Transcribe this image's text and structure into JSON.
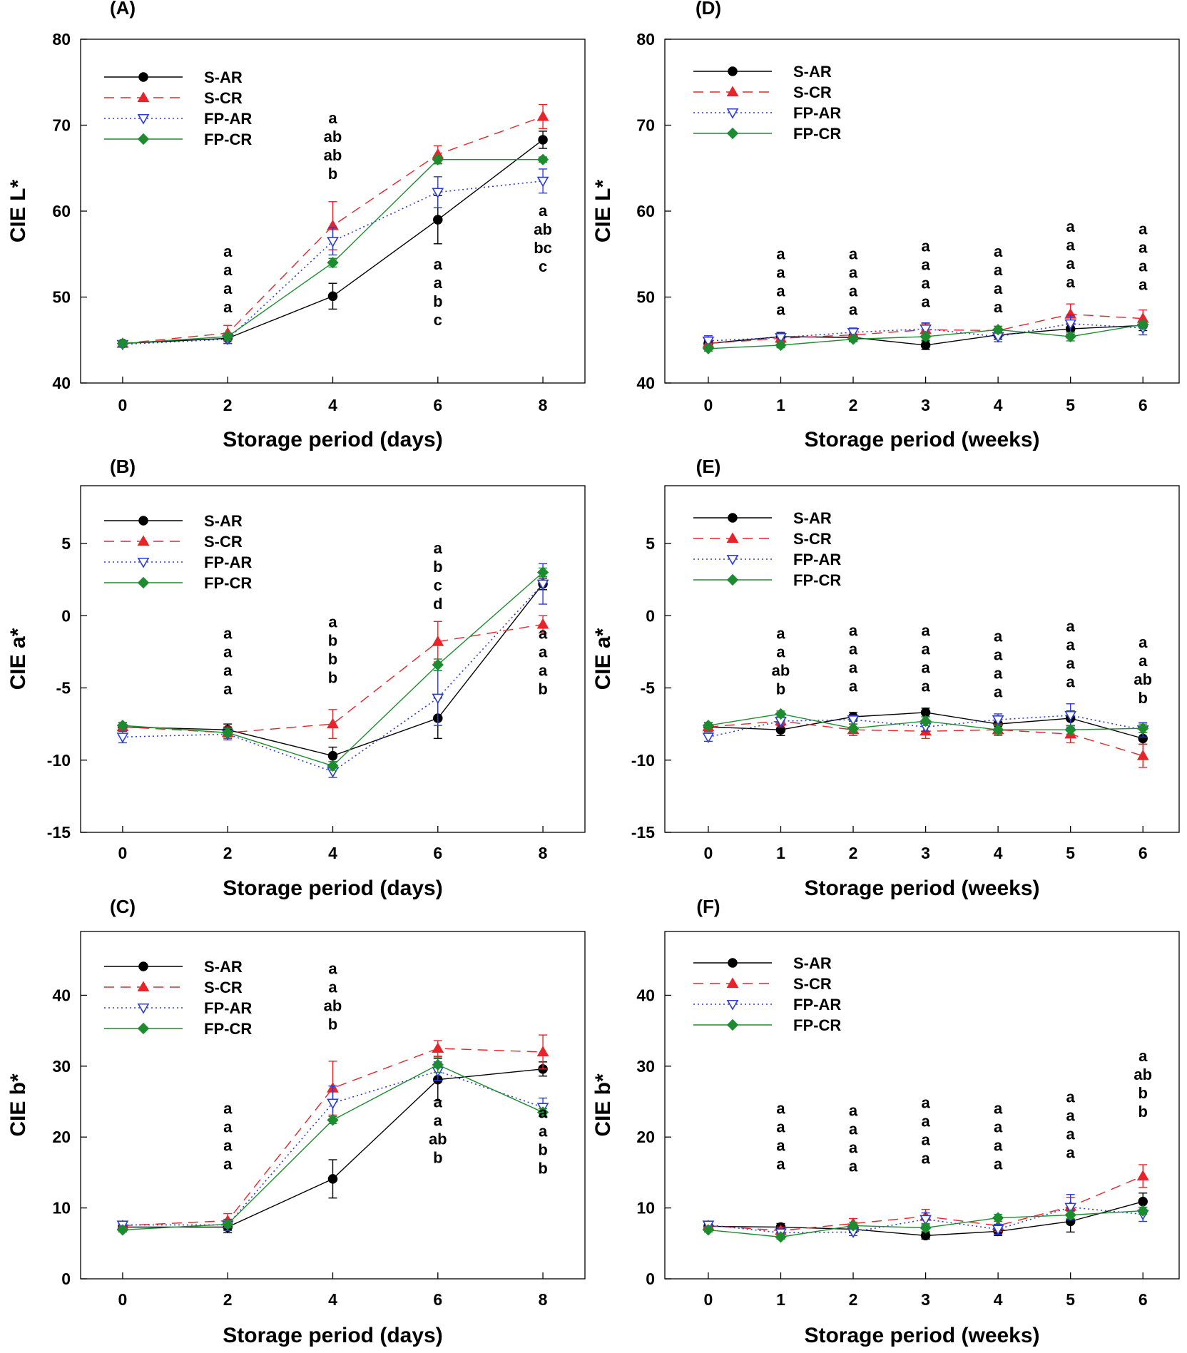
{
  "series_styles": [
    {
      "key": "S-AR",
      "color": "#000000",
      "dash": "",
      "marker": "circle",
      "fill": "#000000"
    },
    {
      "key": "S-CR",
      "color": "#e8242a",
      "dash": "14,9",
      "marker": "triangle",
      "fill": "#e8242a"
    },
    {
      "key": "FP-AR",
      "color": "#2b3cd6",
      "dash": "2,4",
      "marker": "triangle-down",
      "fill": "#ffffff"
    },
    {
      "key": "FP-CR",
      "color": "#1c8c2e",
      "dash": "",
      "marker": "diamond",
      "fill": "#1c8c2e"
    }
  ],
  "chart_data": [
    {
      "panel": "(A)",
      "type": "line",
      "xlabel": "Storage period (days)",
      "ylabel": "CIE L*",
      "x": [
        0,
        2,
        4,
        6,
        8
      ],
      "xticks": [
        "0",
        "2",
        "4",
        "6",
        "8"
      ],
      "xlim": [
        -0.8,
        8.8
      ],
      "ylim": [
        40,
        80
      ],
      "yticks": [
        "40",
        "50",
        "60",
        "70",
        "80"
      ],
      "series": [
        {
          "name": "S-AR",
          "values": [
            44.6,
            45.2,
            50.1,
            59.0,
            68.3
          ],
          "err": [
            0.3,
            0.6,
            1.5,
            2.8,
            1.0
          ]
        },
        {
          "name": "S-CR",
          "values": [
            44.6,
            45.8,
            58.3,
            66.6,
            71.0
          ],
          "err": [
            0.3,
            0.9,
            2.8,
            1.0,
            1.4
          ]
        },
        {
          "name": "FP-AR",
          "values": [
            44.5,
            45.1,
            56.5,
            62.2,
            63.5
          ],
          "err": [
            0.3,
            0.5,
            1.6,
            1.8,
            1.4
          ]
        },
        {
          "name": "FP-CR",
          "values": [
            44.6,
            45.4,
            54.0,
            66.0,
            66.0
          ],
          "err": [
            0.3,
            0.4,
            0.5,
            0.5,
            0.3
          ]
        }
      ],
      "annotations": [
        {
          "x": 2,
          "y": 54.7,
          "lines": [
            "a",
            "a",
            "a",
            "a"
          ]
        },
        {
          "x": 4,
          "y": 70.2,
          "lines": [
            "a",
            "ab",
            "ab",
            "b"
          ]
        },
        {
          "x": 6,
          "y": 53.2,
          "lines": [
            "a",
            "a",
            "b",
            "c"
          ]
        },
        {
          "x": 8,
          "y": 59.4,
          "lines": [
            "a",
            "ab",
            "bc",
            "c"
          ]
        }
      ]
    },
    {
      "panel": "(B)",
      "type": "line",
      "xlabel": "Storage period (days)",
      "ylabel": "CIE a*",
      "x": [
        0,
        2,
        4,
        6,
        8
      ],
      "xticks": [
        "0",
        "2",
        "4",
        "6",
        "8"
      ],
      "xlim": [
        -0.8,
        8.8
      ],
      "ylim": [
        -15,
        9
      ],
      "yticks": [
        "-15",
        "-10",
        "-5",
        "0",
        "5"
      ],
      "series": [
        {
          "name": "S-AR",
          "values": [
            -7.7,
            -7.9,
            -9.7,
            -7.1,
            2.2
          ],
          "err": [
            0.3,
            0.4,
            0.6,
            1.4,
            0.4
          ]
        },
        {
          "name": "S-CR",
          "values": [
            -7.7,
            -8.1,
            -7.5,
            -1.8,
            -0.6
          ],
          "err": [
            0.3,
            0.4,
            1.0,
            1.4,
            0.6
          ]
        },
        {
          "name": "FP-AR",
          "values": [
            -8.4,
            -8.2,
            -10.8,
            -5.7,
            2.2
          ],
          "err": [
            0.4,
            0.4,
            0.4,
            1.9,
            1.4
          ]
        },
        {
          "name": "FP-CR",
          "values": [
            -7.6,
            -8.1,
            -10.4,
            -3.4,
            3.0
          ],
          "err": [
            0.2,
            0.3,
            0.3,
            0.4,
            0.3
          ]
        }
      ],
      "annotations": [
        {
          "x": 2,
          "y": -1.6,
          "lines": [
            "a",
            "a",
            "a",
            "a"
          ]
        },
        {
          "x": 4,
          "y": -0.8,
          "lines": [
            "a",
            "b",
            "b",
            "b"
          ]
        },
        {
          "x": 6,
          "y": 4.3,
          "lines": [
            "a",
            "b",
            "c",
            "d"
          ]
        },
        {
          "x": 8,
          "y": -1.6,
          "lines": [
            "a",
            "a",
            "a",
            "b"
          ]
        }
      ]
    },
    {
      "panel": "(C)",
      "type": "line",
      "xlabel": "Storage period (days)",
      "ylabel": "CIE b*",
      "x": [
        0,
        2,
        4,
        6,
        8
      ],
      "xticks": [
        "0",
        "2",
        "4",
        "6",
        "8"
      ],
      "xlim": [
        -0.8,
        8.8
      ],
      "ylim": [
        0,
        49
      ],
      "yticks": [
        "0",
        "10",
        "20",
        "30",
        "40"
      ],
      "series": [
        {
          "name": "S-AR",
          "values": [
            7.3,
            7.3,
            14.1,
            28.1,
            29.6
          ],
          "err": [
            0.5,
            0.8,
            2.7,
            3.0,
            1.0
          ]
        },
        {
          "name": "S-CR",
          "values": [
            7.5,
            8.2,
            26.9,
            32.5,
            32.0
          ],
          "err": [
            0.4,
            1.0,
            3.8,
            1.1,
            2.4
          ]
        },
        {
          "name": "FP-AR",
          "values": [
            7.6,
            7.6,
            24.8,
            29.3,
            24.2
          ],
          "err": [
            0.4,
            0.8,
            2.4,
            1.3,
            1.3
          ]
        },
        {
          "name": "FP-CR",
          "values": [
            6.9,
            7.7,
            22.4,
            30.2,
            23.5
          ],
          "err": [
            0.3,
            0.5,
            0.5,
            1.1,
            0.5
          ]
        }
      ],
      "annotations": [
        {
          "x": 2,
          "y": 23.3,
          "lines": [
            "a",
            "a",
            "a",
            "a"
          ]
        },
        {
          "x": 4,
          "y": 43.0,
          "lines": [
            "a",
            "a",
            "ab",
            "b"
          ]
        },
        {
          "x": 6,
          "y": 24.2,
          "lines": [
            "a",
            "a",
            "ab",
            "b"
          ]
        },
        {
          "x": 8,
          "y": 22.7,
          "lines": [
            "a",
            "a",
            "b",
            "b"
          ]
        }
      ]
    },
    {
      "panel": "(D)",
      "type": "line",
      "xlabel": "Storage period (weeks)",
      "ylabel": "CIE L*",
      "x": [
        0,
        1,
        2,
        3,
        4,
        5,
        6
      ],
      "xticks": [
        "0",
        "1",
        "2",
        "3",
        "4",
        "5",
        "6"
      ],
      "xlim": [
        -0.6,
        6.5
      ],
      "ylim": [
        40,
        80
      ],
      "yticks": [
        "40",
        "50",
        "60",
        "70",
        "80"
      ],
      "series": [
        {
          "name": "S-AR",
          "values": [
            44.6,
            45.4,
            45.3,
            44.4,
            45.6,
            46.3,
            46.7
          ],
          "err": [
            0.3,
            0.4,
            0.4,
            0.5,
            0.5,
            0.6,
            0.6
          ]
        },
        {
          "name": "S-CR",
          "values": [
            44.6,
            45.2,
            45.6,
            46.2,
            46.1,
            48.0,
            47.5
          ],
          "err": [
            0.4,
            0.5,
            0.5,
            0.7,
            0.5,
            1.2,
            1.0
          ]
        },
        {
          "name": "FP-AR",
          "values": [
            44.9,
            45.3,
            45.9,
            46.3,
            45.4,
            46.9,
            46.4
          ],
          "err": [
            0.6,
            0.6,
            0.5,
            0.7,
            0.6,
            1.0,
            0.8
          ]
        },
        {
          "name": "FP-CR",
          "values": [
            44.0,
            44.4,
            45.1,
            45.4,
            46.2,
            45.4,
            46.8
          ],
          "err": [
            0.3,
            0.3,
            0.3,
            0.4,
            0.4,
            0.5,
            0.4
          ]
        }
      ],
      "annotations": [
        {
          "x": 1,
          "y": 54.4,
          "lines": [
            "a",
            "a",
            "a",
            "a"
          ]
        },
        {
          "x": 2,
          "y": 54.4,
          "lines": [
            "a",
            "a",
            "a",
            "a"
          ]
        },
        {
          "x": 3,
          "y": 55.3,
          "lines": [
            "a",
            "a",
            "a",
            "a"
          ]
        },
        {
          "x": 4,
          "y": 54.7,
          "lines": [
            "a",
            "a",
            "a",
            "a"
          ]
        },
        {
          "x": 5,
          "y": 57.6,
          "lines": [
            "a",
            "a",
            "a",
            "a"
          ]
        },
        {
          "x": 6,
          "y": 57.3,
          "lines": [
            "a",
            "a",
            "a",
            "a"
          ]
        }
      ]
    },
    {
      "panel": "(E)",
      "type": "line",
      "xlabel": "Storage period (weeks)",
      "ylabel": "CIE a*",
      "x": [
        0,
        1,
        2,
        3,
        4,
        5,
        6
      ],
      "xticks": [
        "0",
        "1",
        "2",
        "3",
        "4",
        "5",
        "6"
      ],
      "xlim": [
        -0.6,
        6.5
      ],
      "ylim": [
        -15,
        9
      ],
      "yticks": [
        "-15",
        "-10",
        "-5",
        "0",
        "5"
      ],
      "series": [
        {
          "name": "S-AR",
          "values": [
            -7.7,
            -7.9,
            -7.0,
            -6.7,
            -7.5,
            -7.1,
            -8.5
          ],
          "err": [
            0.3,
            0.4,
            0.3,
            0.3,
            0.4,
            0.5,
            0.4
          ]
        },
        {
          "name": "S-CR",
          "values": [
            -7.7,
            -7.3,
            -7.9,
            -8.0,
            -7.9,
            -8.2,
            -9.7
          ],
          "err": [
            0.3,
            0.4,
            0.4,
            0.5,
            0.4,
            0.6,
            0.8
          ]
        },
        {
          "name": "FP-AR",
          "values": [
            -8.4,
            -7.3,
            -7.2,
            -7.7,
            -7.2,
            -6.9,
            -7.9
          ],
          "err": [
            0.3,
            0.3,
            0.3,
            0.3,
            0.4,
            0.8,
            0.5
          ]
        },
        {
          "name": "FP-CR",
          "values": [
            -7.6,
            -6.8,
            -7.8,
            -7.3,
            -7.9,
            -7.9,
            -7.8
          ],
          "err": [
            0.2,
            0.2,
            0.3,
            0.3,
            0.3,
            0.3,
            0.3
          ]
        }
      ],
      "annotations": [
        {
          "x": 1,
          "y": -1.6,
          "lines": [
            "a",
            "a",
            "ab",
            "b"
          ]
        },
        {
          "x": 2,
          "y": -1.4,
          "lines": [
            "a",
            "a",
            "a",
            "a"
          ]
        },
        {
          "x": 3,
          "y": -1.4,
          "lines": [
            "a",
            "a",
            "a",
            "a"
          ]
        },
        {
          "x": 4,
          "y": -1.8,
          "lines": [
            "a",
            "a",
            "a",
            "a"
          ]
        },
        {
          "x": 5,
          "y": -1.1,
          "lines": [
            "a",
            "a",
            "a",
            "a"
          ]
        },
        {
          "x": 6,
          "y": -2.2,
          "lines": [
            "a",
            "a",
            "ab",
            "b"
          ]
        }
      ]
    },
    {
      "panel": "(F)",
      "type": "line",
      "xlabel": "Storage period (weeks)",
      "ylabel": "CIE b*",
      "x": [
        0,
        1,
        2,
        3,
        4,
        5,
        6
      ],
      "xticks": [
        "0",
        "1",
        "2",
        "3",
        "4",
        "5",
        "6"
      ],
      "xlim": [
        -0.6,
        6.5
      ],
      "ylim": [
        0,
        49
      ],
      "yticks": [
        "0",
        "10",
        "20",
        "30",
        "40"
      ],
      "series": [
        {
          "name": "S-AR",
          "values": [
            7.4,
            7.3,
            7.0,
            6.1,
            6.7,
            8.1,
            10.9
          ],
          "err": [
            0.4,
            0.5,
            0.5,
            0.5,
            0.6,
            1.5,
            1.2
          ]
        },
        {
          "name": "S-CR",
          "values": [
            7.5,
            6.8,
            7.8,
            8.8,
            7.5,
            10.2,
            14.5
          ],
          "err": [
            0.4,
            0.5,
            0.7,
            1.0,
            0.8,
            1.3,
            1.6
          ]
        },
        {
          "name": "FP-AR",
          "values": [
            7.6,
            6.5,
            6.6,
            8.4,
            7.0,
            10.1,
            9.1
          ],
          "err": [
            0.4,
            0.5,
            0.5,
            0.9,
            0.7,
            1.8,
            1.0
          ]
        },
        {
          "name": "FP-CR",
          "values": [
            6.9,
            5.9,
            7.5,
            7.2,
            8.6,
            9.0,
            9.6
          ],
          "err": [
            0.3,
            0.3,
            0.5,
            0.5,
            0.5,
            0.5,
            0.5
          ]
        }
      ],
      "annotations": [
        {
          "x": 1,
          "y": 23.3,
          "lines": [
            "a",
            "a",
            "a",
            "a"
          ]
        },
        {
          "x": 2,
          "y": 23.0,
          "lines": [
            "a",
            "a",
            "a",
            "a"
          ]
        },
        {
          "x": 3,
          "y": 24.1,
          "lines": [
            "a",
            "a",
            "a",
            "a"
          ]
        },
        {
          "x": 4,
          "y": 23.3,
          "lines": [
            "a",
            "a",
            "a",
            "a"
          ]
        },
        {
          "x": 5,
          "y": 24.9,
          "lines": [
            "a",
            "a",
            "a",
            "a"
          ]
        },
        {
          "x": 6,
          "y": 30.7,
          "lines": [
            "a",
            "ab",
            "b",
            "b"
          ]
        }
      ]
    }
  ]
}
